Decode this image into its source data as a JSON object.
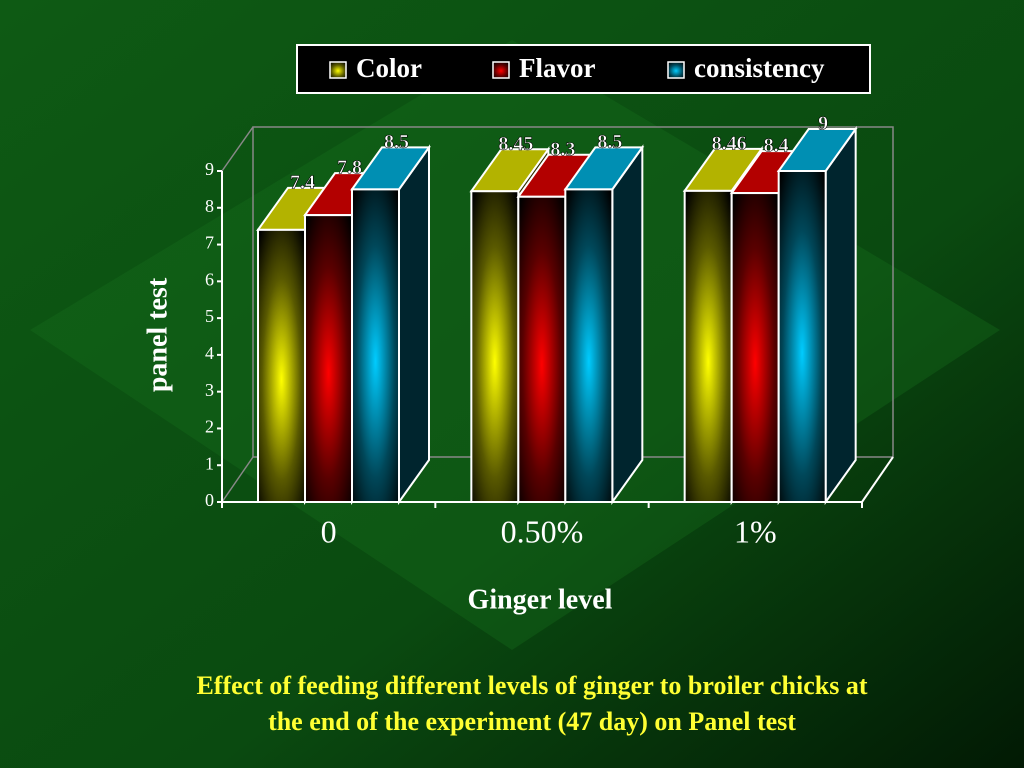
{
  "chart_data": {
    "type": "bar3d",
    "x_label": "Ginger level",
    "y_label": "panel test",
    "caption": [
      "Effect of feeding different levels of ginger to broiler chicks  at",
      "the end of the experiment (47 day) on Panel test"
    ],
    "categories": [
      "0",
      "0.50%",
      "1%"
    ],
    "series": [
      {
        "name": "Color",
        "color": "#ffff00",
        "values": [
          7.4,
          8.45,
          8.46
        ]
      },
      {
        "name": "Flavor",
        "color": "#ff0000",
        "values": [
          7.8,
          8.3,
          8.4
        ]
      },
      {
        "name": "consistency",
        "color": "#00ccff",
        "values": [
          8.5,
          8.5,
          9
        ]
      }
    ],
    "ylim": [
      0,
      9
    ],
    "yticks": [
      0,
      1,
      2,
      3,
      4,
      5,
      6,
      7,
      8,
      9
    ]
  }
}
